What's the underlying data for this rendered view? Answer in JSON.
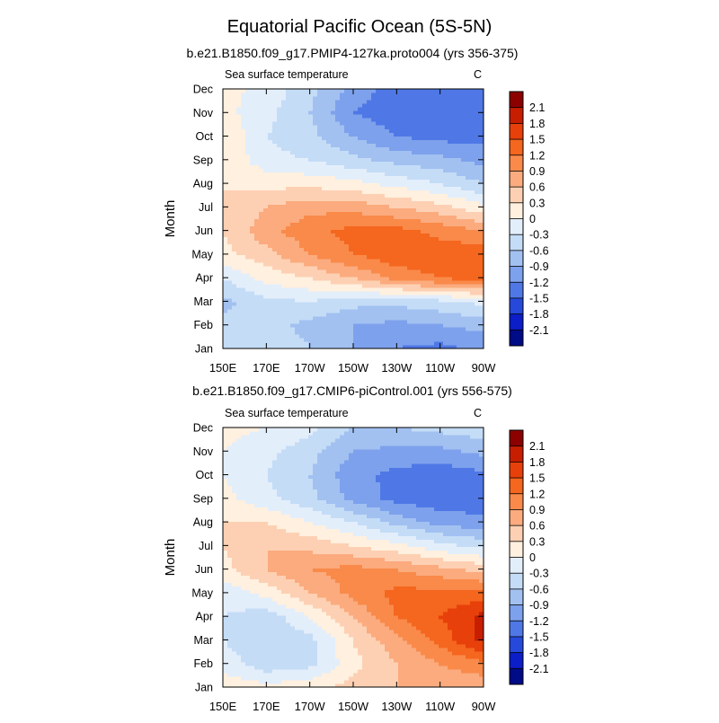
{
  "page_title": "Equatorial Pacific Ocean (5S-5N)",
  "panels": [
    {
      "case_title": "b.e21.B1850.f09_g17.PMIP4-127ka.proto004 (yrs 356-375)",
      "left_label": "Sea surface temperature",
      "right_label": "C"
    },
    {
      "case_title": "b.e21.B1850.f09_g17.CMIP6-piControl.001 (yrs 556-575)",
      "left_label": "Sea surface temperature",
      "right_label": "C"
    }
  ],
  "ylabel": "Month",
  "colorbar_labels": [
    "2.1",
    "1.8",
    "1.5",
    "1.2",
    "0.9",
    "0.6",
    "0.3",
    "0",
    "-0.3",
    "-0.6",
    "-0.9",
    "-1.2",
    "-1.5",
    "-1.8",
    "-2.1"
  ],
  "colorbar_colors": [
    "#8c0000",
    "#c81e00",
    "#e8400a",
    "#f5661e",
    "#f98a4a",
    "#fbab7e",
    "#fdd0b3",
    "#fff0df",
    "#e3eefb",
    "#c4dcf6",
    "#a2c1f1",
    "#7da1ec",
    "#4f78e6",
    "#2649dc",
    "#0b1ec8",
    "#000b87"
  ],
  "chart_data": [
    {
      "type": "heatmap",
      "title": "b.e21.B1850.f09_g17.PMIP4-127ka.proto004 (yrs 356-375)",
      "variable": "Sea surface temperature",
      "units": "C",
      "xlabel": "",
      "ylabel": "Month",
      "x_tick_labels": [
        "150E",
        "170E",
        "170W",
        "150W",
        "130W",
        "110W",
        "90W"
      ],
      "y_tick_labels": [
        "Jan",
        "Feb",
        "Mar",
        "Apr",
        "May",
        "Jun",
        "Jul",
        "Aug",
        "Sep",
        "Oct",
        "Nov",
        "Dec"
      ],
      "contour_levels": [
        -2.1,
        -1.8,
        -1.5,
        -1.2,
        -0.9,
        -0.6,
        -0.3,
        0,
        0.3,
        0.6,
        0.9,
        1.2,
        1.5,
        1.8,
        2.1
      ],
      "values": [
        [
          -0.3,
          -0.3,
          -0.6,
          -0.9,
          -1.2,
          -1.3,
          -1.1
        ],
        [
          -0.5,
          -0.5,
          -0.7,
          -0.9,
          -1.0,
          -0.9,
          -0.8
        ],
        [
          -0.7,
          -0.4,
          -0.3,
          -0.5,
          -0.5,
          -0.4,
          -0.2
        ],
        [
          -0.3,
          0.1,
          0.3,
          0.6,
          1.0,
          1.2,
          1.3
        ],
        [
          0.2,
          0.5,
          0.9,
          1.2,
          1.4,
          1.4,
          1.4
        ],
        [
          0.3,
          0.8,
          1.1,
          1.3,
          1.3,
          1.1,
          0.9
        ],
        [
          0.3,
          0.6,
          0.8,
          0.8,
          0.6,
          0.4,
          0.1
        ],
        [
          0.3,
          0.2,
          0.2,
          0.1,
          -0.1,
          -0.3,
          -0.6
        ],
        [
          0.3,
          -0.2,
          -0.3,
          -0.5,
          -0.7,
          -0.8,
          -1.0
        ],
        [
          0.3,
          -0.3,
          -0.5,
          -0.9,
          -1.2,
          -1.3,
          -1.3
        ],
        [
          0.1,
          -0.2,
          -0.6,
          -1.2,
          -1.4,
          -1.5,
          -1.4
        ],
        [
          0.1,
          -0.1,
          -0.5,
          -1.0,
          -1.4,
          -1.4,
          -1.4
        ]
      ]
    },
    {
      "type": "heatmap",
      "title": "b.e21.B1850.f09_g17.CMIP6-piControl.001 (yrs 556-575)",
      "variable": "Sea surface temperature",
      "units": "C",
      "xlabel": "",
      "ylabel": "Month",
      "x_tick_labels": [
        "150E",
        "170E",
        "170W",
        "150W",
        "130W",
        "110W",
        "90W"
      ],
      "y_tick_labels": [
        "Jan",
        "Feb",
        "Mar",
        "Apr",
        "May",
        "Jun",
        "Jul",
        "Aug",
        "Sep",
        "Oct",
        "Nov",
        "Dec"
      ],
      "contour_levels": [
        -2.1,
        -1.8,
        -1.5,
        -1.2,
        -0.9,
        -0.6,
        -0.3,
        0,
        0.3,
        0.6,
        0.9,
        1.2,
        1.5,
        1.8,
        2.1
      ],
      "values": [
        [
          0.2,
          0.1,
          0.2,
          0.4,
          0.6,
          0.7,
          0.7
        ],
        [
          -0.1,
          -0.5,
          -0.4,
          0.2,
          0.6,
          0.9,
          1.1
        ],
        [
          -0.3,
          -0.6,
          -0.4,
          0.3,
          0.8,
          1.3,
          1.9
        ],
        [
          -0.3,
          -0.5,
          0.0,
          0.6,
          1.2,
          1.5,
          1.9
        ],
        [
          -0.2,
          0.1,
          0.6,
          1.0,
          1.3,
          1.3,
          1.3
        ],
        [
          0.2,
          0.6,
          0.9,
          1.0,
          0.9,
          0.7,
          0.5
        ],
        [
          0.3,
          0.6,
          0.5,
          0.3,
          0.1,
          -0.2,
          -0.4
        ],
        [
          0.3,
          0.3,
          0.0,
          -0.3,
          -0.7,
          -1.0,
          -1.1
        ],
        [
          0.1,
          -0.2,
          -0.5,
          -1.0,
          -1.3,
          -1.4,
          -1.4
        ],
        [
          0.0,
          -0.3,
          -0.6,
          -1.1,
          -1.3,
          -1.4,
          -1.3
        ],
        [
          0.0,
          -0.2,
          -0.5,
          -0.9,
          -1.0,
          -1.0,
          -0.8
        ],
        [
          0.1,
          0.0,
          -0.2,
          -0.6,
          -0.6,
          -0.5,
          -0.4
        ]
      ]
    }
  ]
}
